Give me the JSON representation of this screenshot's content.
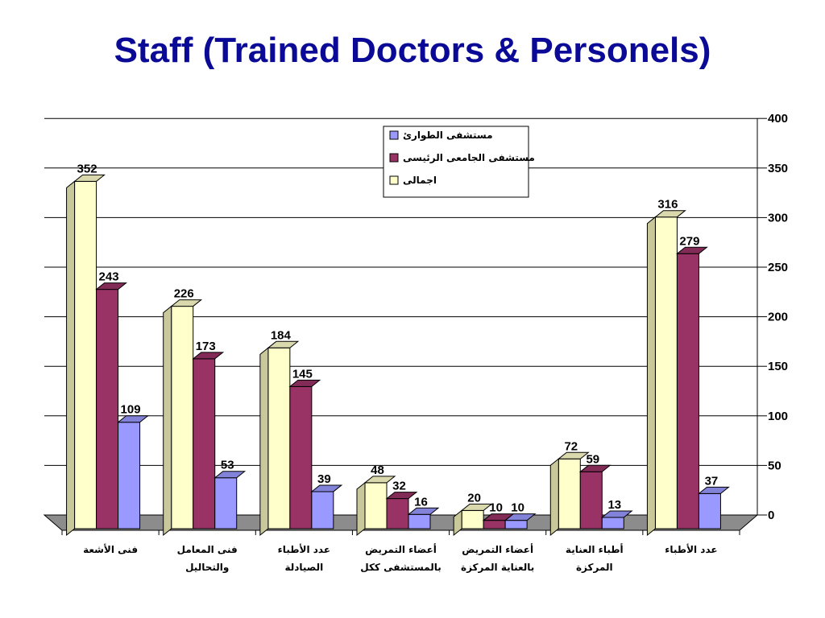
{
  "slide": {
    "title": "Staff (Trained Doctors & Personels)"
  },
  "chart_data": {
    "type": "bar",
    "title": "Staff (Trained Doctors & Personels)",
    "categories": [
      [
        "فنى الأشعة"
      ],
      [
        "فنى المعامل",
        "والتحاليل"
      ],
      [
        "عدد الأطباء",
        "الصيادلة"
      ],
      [
        "أعضاء التمريض",
        "بالمستشفى ككل"
      ],
      [
        "أعضاء التمريض",
        "بالعناية المركزة"
      ],
      [
        "أطباء العناية",
        "المركزة"
      ],
      [
        "عدد الأطباء"
      ]
    ],
    "series": [
      {
        "name": "اجمالى",
        "color": "#ffffcc",
        "values": [
          352,
          226,
          184,
          48,
          20,
          72,
          316
        ]
      },
      {
        "name": "مستشفى الجامعى الرئيسى",
        "color": "#993366",
        "values": [
          243,
          173,
          145,
          32,
          10,
          59,
          279
        ]
      },
      {
        "name": "مستشفى الطوارئ",
        "color": "#9999ff",
        "values": [
          109,
          53,
          39,
          16,
          10,
          13,
          37
        ]
      }
    ],
    "legend_order": [
      "مستشفى الطوارئ",
      "مستشفى الجامعى الرئيسى",
      "اجمالى"
    ],
    "yticks": [
      0,
      50,
      100,
      150,
      200,
      250,
      300,
      350,
      400
    ],
    "ylim": [
      0,
      400
    ],
    "grid": true,
    "legend_position": "top-center",
    "y_axis_side": "right",
    "style": "3d"
  }
}
